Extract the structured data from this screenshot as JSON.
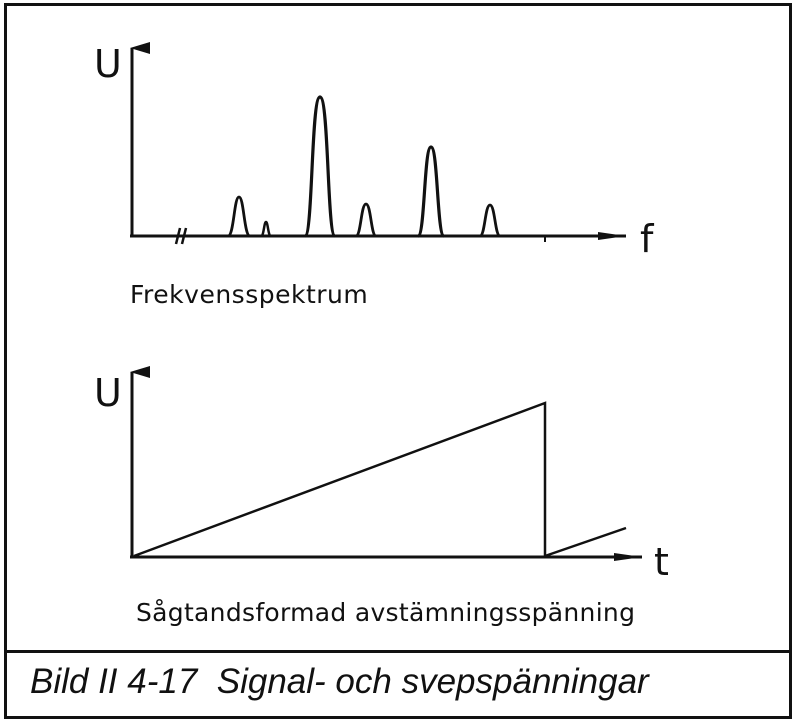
{
  "diagram": {
    "top_panel": {
      "y_axis_label": "U",
      "x_axis_label": "f",
      "caption": "Frekvensspektrum"
    },
    "bottom_panel": {
      "y_axis_label": "U",
      "x_axis_label": "t",
      "caption": "Sågtandsformad avstämningsspänning"
    },
    "figure_caption": "Bild II 4-17  Signal- och svepspänningar",
    "line_color": "#111111"
  }
}
